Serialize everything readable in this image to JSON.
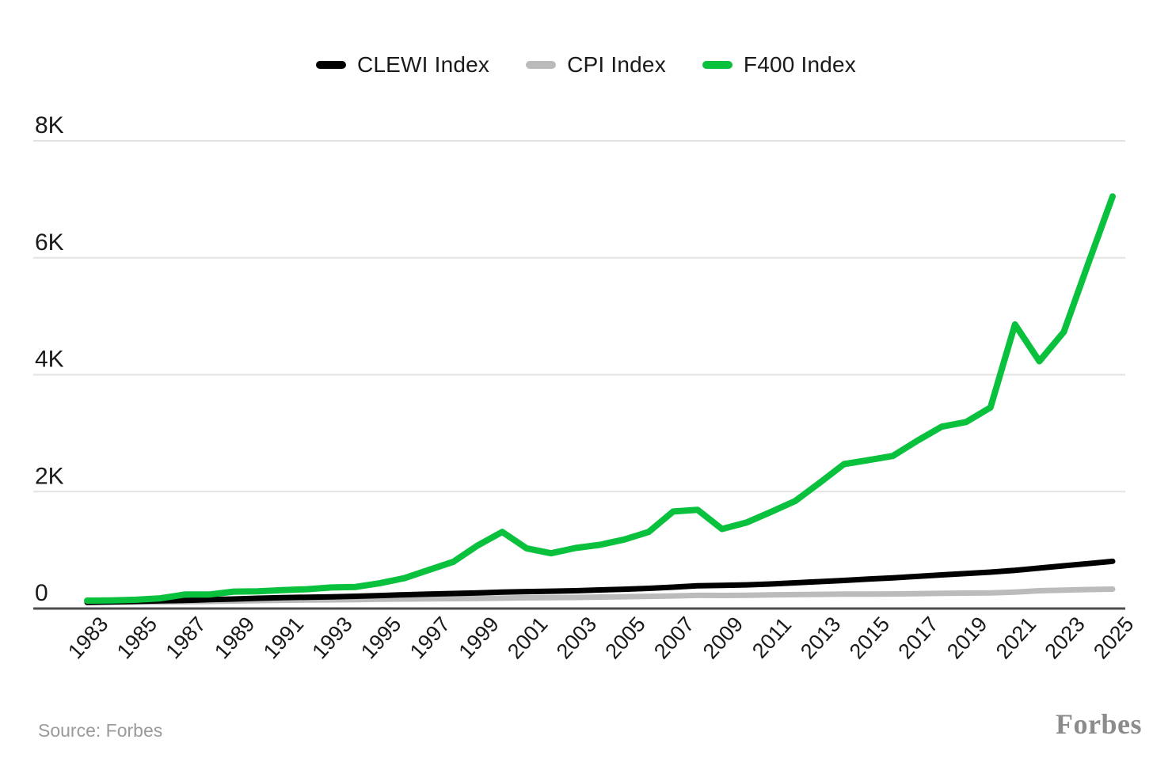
{
  "legend": {
    "items": [
      {
        "label": "CLEWI Index",
        "color": "#000000"
      },
      {
        "label": "CPI Index",
        "color": "#bbbbbb"
      },
      {
        "label": "F400 Index",
        "color": "#0ac13e"
      }
    ]
  },
  "chart_data": {
    "type": "line",
    "title": "",
    "xlabel": "",
    "ylabel": "",
    "ylim": [
      0,
      8000
    ],
    "grid": "horizontal-only",
    "legend_position": "top-center",
    "y_ticks": [
      {
        "label": "8K",
        "value": 8000
      },
      {
        "label": "6K",
        "value": 6000
      },
      {
        "label": "4K",
        "value": 4000
      },
      {
        "label": "2K",
        "value": 2000
      },
      {
        "label": "0",
        "value": 0
      }
    ],
    "x_tick_labels": [
      "1983",
      "1985",
      "1987",
      "1989",
      "1991",
      "1993",
      "1995",
      "1997",
      "1999",
      "2001",
      "2003",
      "2005",
      "2007",
      "2009",
      "2011",
      "2013",
      "2015",
      "2017",
      "2019",
      "2021",
      "2023",
      "2025"
    ],
    "categories": [
      1983,
      1984,
      1985,
      1986,
      1987,
      1988,
      1989,
      1990,
      1991,
      1992,
      1993,
      1994,
      1995,
      1996,
      1997,
      1998,
      1999,
      2000,
      2001,
      2002,
      2003,
      2004,
      2005,
      2006,
      2007,
      2008,
      2009,
      2010,
      2011,
      2012,
      2013,
      2014,
      2015,
      2016,
      2017,
      2018,
      2019,
      2020,
      2021,
      2022,
      2023,
      2024,
      2025
    ],
    "series": [
      {
        "name": "CLEWI Index",
        "color": "#000000",
        "values": [
          106,
          114,
          122,
          131,
          140,
          152,
          163,
          176,
          186,
          193,
          201,
          210,
          222,
          235,
          248,
          257,
          266,
          280,
          290,
          296,
          305,
          318,
          330,
          345,
          365,
          390,
          395,
          405,
          420,
          440,
          460,
          480,
          505,
          525,
          550,
          575,
          600,
          622,
          654,
          692,
          731,
          769,
          808
        ]
      },
      {
        "name": "CPI Index",
        "color": "#bbbbbb",
        "values": [
          103,
          108,
          111,
          113,
          117,
          122,
          128,
          135,
          141,
          145,
          149,
          153,
          158,
          162,
          166,
          169,
          173,
          178,
          184,
          186,
          190,
          196,
          202,
          209,
          215,
          225,
          223,
          226,
          233,
          238,
          242,
          246,
          246,
          249,
          254,
          260,
          264,
          267,
          281,
          304,
          316,
          325,
          332
        ]
      },
      {
        "name": "F400 Index",
        "color": "#0ac13e",
        "values": [
          135,
          140,
          150,
          175,
          240,
          240,
          290,
          295,
          315,
          330,
          360,
          370,
          435,
          520,
          660,
          800,
          1080,
          1310,
          1030,
          945,
          1035,
          1090,
          1180,
          1310,
          1660,
          1690,
          1360,
          1470,
          1650,
          1840,
          2150,
          2470,
          2540,
          2610,
          2870,
          3110,
          3190,
          3440,
          4860,
          4230,
          4730,
          5900,
          7050
        ]
      }
    ]
  },
  "footer": {
    "source": "Source: Forbes",
    "logo": "Forbes"
  },
  "style": {
    "gridline_color": "#e3e3e3",
    "axis_color": "#4d4d4d",
    "tick_label_color": "#1a1a1a"
  }
}
